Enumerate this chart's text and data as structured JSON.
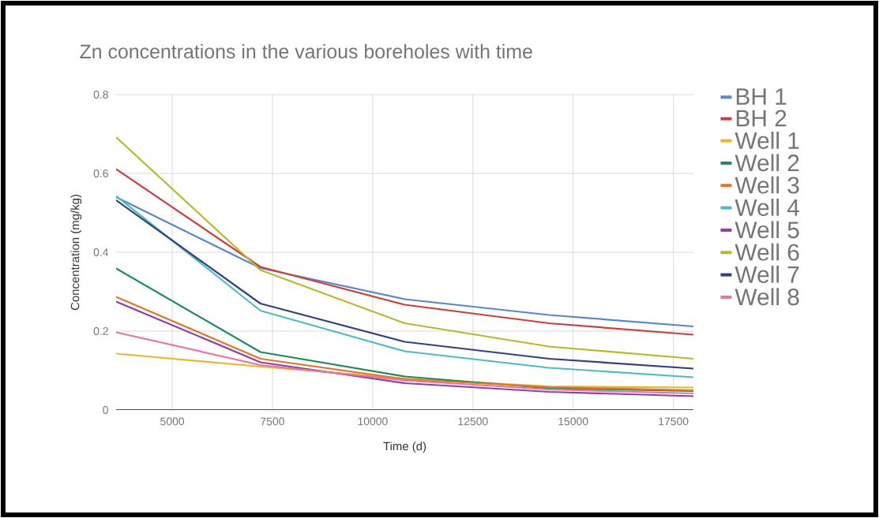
{
  "chart_data": {
    "type": "line",
    "title": "Zn concentrations in the various boreholes with time",
    "xlabel": "Time (d)",
    "ylabel": "Concentration (mg/kg)",
    "x": [
      3600,
      7200,
      10800,
      14400,
      18000
    ],
    "series": [
      {
        "name": "BH 1",
        "color": "#5a87c9",
        "values": [
          0.54,
          0.36,
          0.281,
          0.241,
          0.212
        ]
      },
      {
        "name": "BH 2",
        "color": "#c94040",
        "values": [
          0.611,
          0.363,
          0.267,
          0.22,
          0.191
        ]
      },
      {
        "name": "Well 1",
        "color": "#e8b72b",
        "values": [
          0.143,
          0.11,
          0.08,
          0.06,
          0.057
        ]
      },
      {
        "name": "Well 2",
        "color": "#1f8a5a",
        "values": [
          0.359,
          0.147,
          0.085,
          0.055,
          0.048
        ]
      },
      {
        "name": "Well 3",
        "color": "#e0782c",
        "values": [
          0.287,
          0.13,
          0.078,
          0.058,
          0.05
        ]
      },
      {
        "name": "Well 4",
        "color": "#4fbcc4",
        "values": [
          0.543,
          0.252,
          0.149,
          0.107,
          0.083
        ]
      },
      {
        "name": "Well 5",
        "color": "#8e3fa6",
        "values": [
          0.275,
          0.121,
          0.068,
          0.046,
          0.035
        ]
      },
      {
        "name": "Well 6",
        "color": "#b8b831",
        "values": [
          0.692,
          0.355,
          0.22,
          0.161,
          0.13
        ]
      },
      {
        "name": "Well 7",
        "color": "#333f80",
        "values": [
          0.532,
          0.27,
          0.173,
          0.13,
          0.105
        ]
      },
      {
        "name": "Well 8",
        "color": "#e675a0",
        "values": [
          0.197,
          0.114,
          0.075,
          0.052,
          0.042
        ]
      }
    ],
    "xlim": [
      3600,
      18000
    ],
    "ylim": [
      0,
      0.8
    ],
    "xticks": [
      5000,
      7500,
      10000,
      12500,
      15000,
      17500
    ],
    "yticks": [
      0,
      0.2,
      0.4,
      0.6,
      0.8
    ],
    "grid": true,
    "legend": "right",
    "marker": "none",
    "line_style": "solid"
  }
}
